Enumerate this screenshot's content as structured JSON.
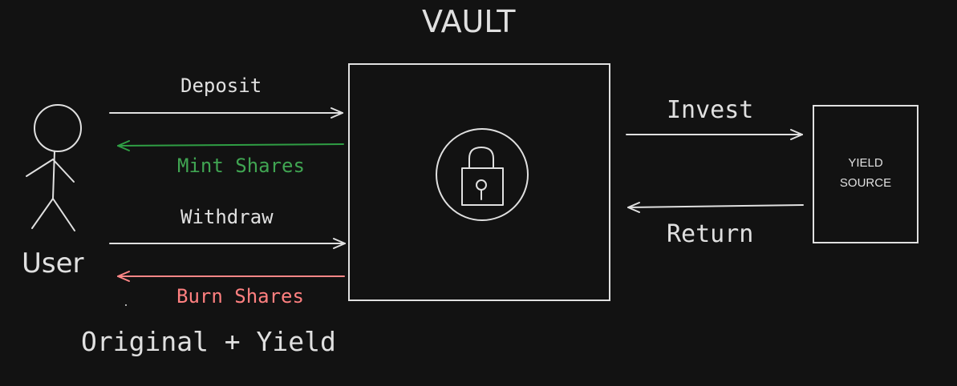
{
  "title": "VAULT",
  "user": {
    "label": "User"
  },
  "arrows": {
    "deposit": "Deposit",
    "mint_shares": "Mint Shares",
    "withdraw": "Withdraw",
    "burn_shares": "Burn Shares",
    "invest": "Invest",
    "return": "Return"
  },
  "yield_source": {
    "line1": "YIELD",
    "line2": "SOURCE"
  },
  "footer": "Original + Yield",
  "colors": {
    "background": "#121212",
    "stroke": "#e0e0e0",
    "mint": "#2f9e44",
    "mint_text": "#40a552",
    "burn": "#ff8787",
    "burn_text": "#ff8080"
  },
  "icons": {
    "user": "stick-figure-icon",
    "vault": "padlock-icon"
  }
}
